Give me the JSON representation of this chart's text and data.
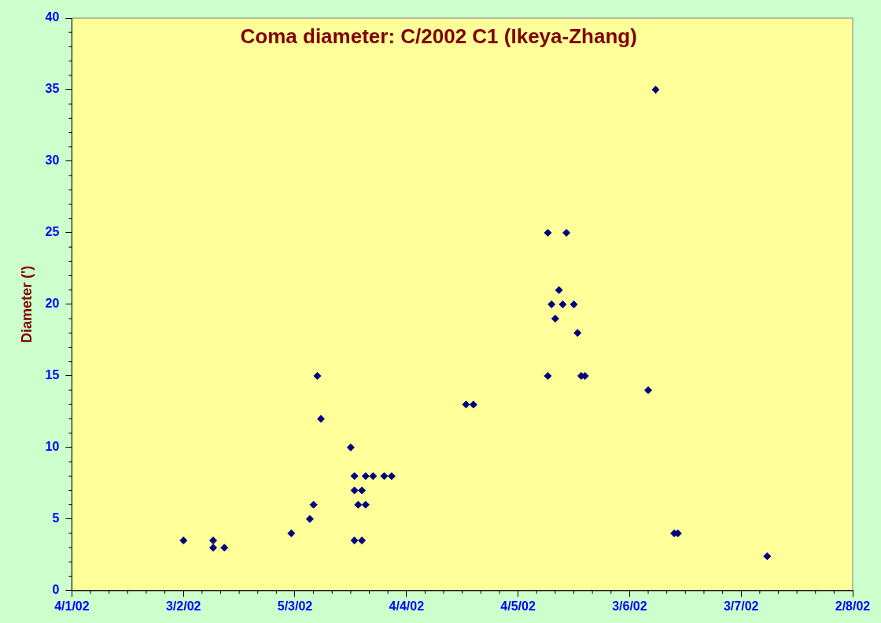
{
  "chart_data": {
    "type": "scatter",
    "title": "Coma diameter: C/2002 C1 (Ikeya-Zhang)",
    "ylabel": "Diameter (')",
    "x": [
      "2002-02-03",
      "2002-02-11",
      "2002-02-11",
      "2002-02-14",
      "2002-03-04",
      "2002-03-09",
      "2002-03-10",
      "2002-03-11",
      "2002-03-12",
      "2002-03-20",
      "2002-03-21",
      "2002-03-21",
      "2002-03-21",
      "2002-03-22",
      "2002-03-23",
      "2002-03-23",
      "2002-03-24",
      "2002-03-24",
      "2002-03-26",
      "2002-03-29",
      "2002-03-31",
      "2002-04-20",
      "2002-04-22",
      "2002-05-12",
      "2002-05-12",
      "2002-05-13",
      "2002-05-14",
      "2002-05-15",
      "2002-05-16",
      "2002-05-17",
      "2002-05-19",
      "2002-05-20",
      "2002-05-21",
      "2002-05-22",
      "2002-06-08",
      "2002-06-10",
      "2002-06-15",
      "2002-06-16",
      "2002-07-10"
    ],
    "series": [
      {
        "color": "#000080",
        "values": [
          3.5,
          3.5,
          3,
          3,
          4,
          5,
          6,
          15,
          12,
          10,
          8,
          7,
          3.5,
          6,
          7,
          3.5,
          8,
          6,
          8,
          8,
          8,
          13,
          13,
          25,
          15,
          20,
          19,
          21,
          20,
          25,
          20,
          18,
          15,
          15,
          14,
          35,
          4,
          4,
          2.4
        ]
      }
    ],
    "xlim": [
      "2002-01-04",
      "2002-08-02"
    ],
    "xticks": [
      {
        "value": "2002-01-04",
        "label": "4/1/02"
      },
      {
        "value": "2002-02-03",
        "label": "3/2/02"
      },
      {
        "value": "2002-03-05",
        "label": "5/3/02"
      },
      {
        "value": "2002-04-04",
        "label": "4/4/02"
      },
      {
        "value": "2002-05-04",
        "label": "4/5/02"
      },
      {
        "value": "2002-06-03",
        "label": "3/6/02"
      },
      {
        "value": "2002-07-03",
        "label": "3/7/02"
      },
      {
        "value": "2002-08-02",
        "label": "2/8/02"
      }
    ],
    "ylim": [
      0,
      40
    ],
    "yticks": [
      0,
      5,
      10,
      15,
      20,
      25,
      30,
      35,
      40
    ],
    "grid": false,
    "legend": false,
    "marker": "diamond"
  }
}
